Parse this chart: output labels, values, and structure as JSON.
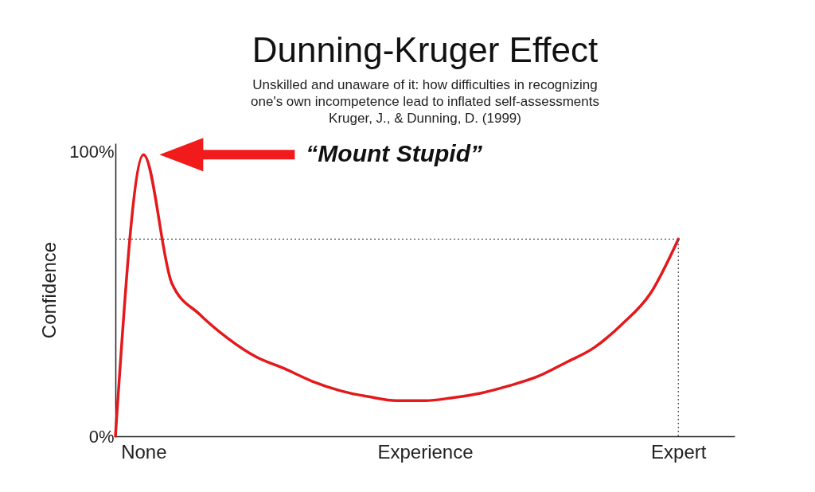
{
  "chart_data": {
    "type": "line",
    "title": "Dunning-Kruger Effect",
    "subtitle": [
      "Unskilled and unaware of it: how difficulties in recognizing",
      "one's own incompetence lead to inflated self-assessments",
      "Kruger, J., & Dunning, D. (1999)"
    ],
    "ylabel": "Confidence",
    "categories": [
      null,
      "None",
      null,
      null,
      null,
      null,
      null,
      null,
      null,
      null,
      null,
      "Experience",
      null,
      null,
      null,
      null,
      null,
      null,
      null,
      null,
      "Expert",
      null,
      null
    ],
    "ylim": [
      0,
      103
    ],
    "yticks": [
      {
        "value": 0,
        "label": "0%"
      },
      {
        "value": 100,
        "label": "100%"
      }
    ],
    "series": [
      {
        "color": "#e3191c",
        "values": [
          0,
          99,
          53.9,
          42.8,
          34.4,
          27.9,
          23.8,
          19.3,
          16.0,
          13.9,
          12.5,
          12.5,
          13.6,
          15.2,
          17.8,
          21.0,
          25.9,
          31.1,
          39.4,
          50.1,
          69.3,
          null,
          null
        ]
      }
    ],
    "ref_lines": [
      {
        "axis": "y",
        "value": 69.3,
        "line_style": "dotted",
        "color": "#555555"
      },
      {
        "axis": "x",
        "value": "Expert",
        "line_style": "dotted",
        "color": "#555555"
      }
    ],
    "annotations": [
      "“Mount Stupid”"
    ],
    "grid": false,
    "marker": "none",
    "line_style": "solid"
  }
}
